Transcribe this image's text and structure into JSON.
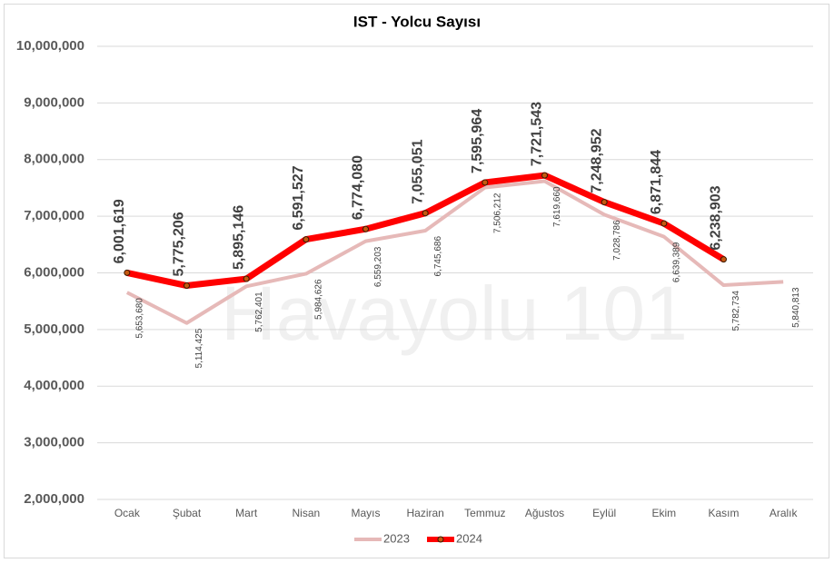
{
  "chart_data": {
    "type": "line",
    "title": "IST - Yolcu Sayısı",
    "watermark": "Havayolu 101",
    "categories": [
      "Ocak",
      "Şubat",
      "Mart",
      "Nisan",
      "Mayıs",
      "Haziran",
      "Temmuz",
      "Ağustos",
      "Eylül",
      "Ekim",
      "Kasım",
      "Aralık"
    ],
    "series": [
      {
        "name": "2023",
        "color": "#e6b9b8",
        "values": [
          5653680,
          5114425,
          5762401,
          5984626,
          6559203,
          6745686,
          7506212,
          7619660,
          7028786,
          6639389,
          5782734,
          5840813
        ],
        "value_labels": [
          "5,653,680",
          "5,114,425",
          "5,762,401",
          "5,984,626",
          "6,559,203",
          "6,745,686",
          "7,506,212",
          "7,619,660",
          "7,028,786",
          "6,639,389",
          "5,782,734",
          "5,840,813"
        ]
      },
      {
        "name": "2024",
        "color": "#ff0000",
        "values": [
          6001619,
          5775206,
          5895146,
          6591527,
          6774080,
          7055051,
          7595964,
          7721543,
          7248952,
          6871844,
          6238903,
          null
        ],
        "value_labels": [
          "6,001,619",
          "5,775,206",
          "5,895,146",
          "6,591,527",
          "6,774,080",
          "7,055,051",
          "7,595,964",
          "7,721,543",
          "7,248,952",
          "6,871,844",
          "6,238,903",
          null
        ]
      }
    ],
    "ylim": [
      2000000,
      10000000
    ],
    "yticks": [
      {
        "value": 2000000,
        "label": "2,000,000"
      },
      {
        "value": 3000000,
        "label": "3,000,000"
      },
      {
        "value": 4000000,
        "label": "4,000,000"
      },
      {
        "value": 5000000,
        "label": "5,000,000"
      },
      {
        "value": 6000000,
        "label": "6,000,000"
      },
      {
        "value": 7000000,
        "label": "7,000,000"
      },
      {
        "value": 8000000,
        "label": "8,000,000"
      },
      {
        "value": 9000000,
        "label": "9,000,000"
      },
      {
        "value": 10000000,
        "label": "10,000,000"
      }
    ],
    "grid": true,
    "legend": "bottom"
  }
}
